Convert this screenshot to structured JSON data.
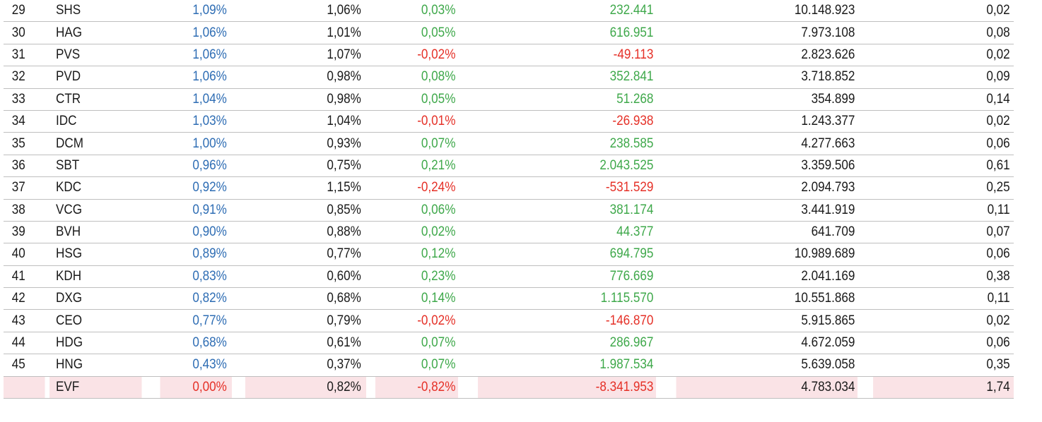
{
  "colors": {
    "weight_text": "#2e6db4",
    "positive": "#3ea84a",
    "negative": "#e53027",
    "highlight_row_bg": "#fae3e6",
    "grid_line": "#bfbfbf"
  },
  "rows": [
    {
      "rank": "29",
      "ticker": "SHS",
      "weight": "1,09%",
      "prev_weight": "1,06%",
      "change": "0,03%",
      "change_sign": "pos",
      "value": "232.441",
      "volume": "10.148.923",
      "ratio": "0,02"
    },
    {
      "rank": "30",
      "ticker": "HAG",
      "weight": "1,06%",
      "prev_weight": "1,01%",
      "change": "0,05%",
      "change_sign": "pos",
      "value": "616.951",
      "volume": "7.973.108",
      "ratio": "0,08"
    },
    {
      "rank": "31",
      "ticker": "PVS",
      "weight": "1,06%",
      "prev_weight": "1,07%",
      "change": "-0,02%",
      "change_sign": "neg",
      "value": "-49.113",
      "volume": "2.823.626",
      "ratio": "0,02"
    },
    {
      "rank": "32",
      "ticker": "PVD",
      "weight": "1,06%",
      "prev_weight": "0,98%",
      "change": "0,08%",
      "change_sign": "pos",
      "value": "352.841",
      "volume": "3.718.852",
      "ratio": "0,09"
    },
    {
      "rank": "33",
      "ticker": "CTR",
      "weight": "1,04%",
      "prev_weight": "0,98%",
      "change": "0,05%",
      "change_sign": "pos",
      "value": "51.268",
      "volume": "354.899",
      "ratio": "0,14"
    },
    {
      "rank": "34",
      "ticker": "IDC",
      "weight": "1,03%",
      "prev_weight": "1,04%",
      "change": "-0,01%",
      "change_sign": "neg",
      "value": "-26.938",
      "volume": "1.243.377",
      "ratio": "0,02"
    },
    {
      "rank": "35",
      "ticker": "DCM",
      "weight": "1,00%",
      "prev_weight": "0,93%",
      "change": "0,07%",
      "change_sign": "pos",
      "value": "238.585",
      "volume": "4.277.663",
      "ratio": "0,06"
    },
    {
      "rank": "36",
      "ticker": "SBT",
      "weight": "0,96%",
      "prev_weight": "0,75%",
      "change": "0,21%",
      "change_sign": "pos",
      "value": "2.043.525",
      "volume": "3.359.506",
      "ratio": "0,61"
    },
    {
      "rank": "37",
      "ticker": "KDC",
      "weight": "0,92%",
      "prev_weight": "1,15%",
      "change": "-0,24%",
      "change_sign": "neg",
      "value": "-531.529",
      "volume": "2.094.793",
      "ratio": "0,25"
    },
    {
      "rank": "38",
      "ticker": "VCG",
      "weight": "0,91%",
      "prev_weight": "0,85%",
      "change": "0,06%",
      "change_sign": "pos",
      "value": "381.174",
      "volume": "3.441.919",
      "ratio": "0,11"
    },
    {
      "rank": "39",
      "ticker": "BVH",
      "weight": "0,90%",
      "prev_weight": "0,88%",
      "change": "0,02%",
      "change_sign": "pos",
      "value": "44.377",
      "volume": "641.709",
      "ratio": "0,07"
    },
    {
      "rank": "40",
      "ticker": "HSG",
      "weight": "0,89%",
      "prev_weight": "0,77%",
      "change": "0,12%",
      "change_sign": "pos",
      "value": "694.795",
      "volume": "10.989.689",
      "ratio": "0,06"
    },
    {
      "rank": "41",
      "ticker": "KDH",
      "weight": "0,83%",
      "prev_weight": "0,60%",
      "change": "0,23%",
      "change_sign": "pos",
      "value": "776.669",
      "volume": "2.041.169",
      "ratio": "0,38"
    },
    {
      "rank": "42",
      "ticker": "DXG",
      "weight": "0,82%",
      "prev_weight": "0,68%",
      "change": "0,14%",
      "change_sign": "pos",
      "value": "1.115.570",
      "volume": "10.551.868",
      "ratio": "0,11"
    },
    {
      "rank": "43",
      "ticker": "CEO",
      "weight": "0,77%",
      "prev_weight": "0,79%",
      "change": "-0,02%",
      "change_sign": "neg",
      "value": "-146.870",
      "volume": "5.915.865",
      "ratio": "0,02"
    },
    {
      "rank": "44",
      "ticker": "HDG",
      "weight": "0,68%",
      "prev_weight": "0,61%",
      "change": "0,07%",
      "change_sign": "pos",
      "value": "286.967",
      "volume": "4.672.059",
      "ratio": "0,06"
    },
    {
      "rank": "45",
      "ticker": "HNG",
      "weight": "0,43%",
      "prev_weight": "0,37%",
      "change": "0,07%",
      "change_sign": "pos",
      "value": "1.987.534",
      "volume": "5.639.058",
      "ratio": "0,35"
    },
    {
      "rank": "",
      "ticker": "EVF",
      "weight": "0,00%",
      "prev_weight": "0,82%",
      "change": "-0,82%",
      "change_sign": "neg",
      "value": "-8.341.953",
      "volume": "4.783.034",
      "ratio": "1,74",
      "highlight": true
    }
  ]
}
